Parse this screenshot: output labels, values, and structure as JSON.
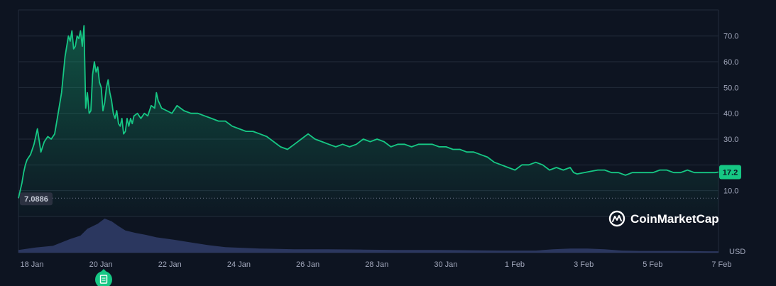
{
  "chart_data": {
    "type": "area",
    "currency_label": "USD",
    "current_price_label": "17.2",
    "low_marker_label": "7.0886",
    "brand": "CoinMarketCap",
    "colors": {
      "line": "#16c784",
      "background": "#0d1421",
      "volume": "#2f3b66",
      "badge": "#16c784",
      "low_badge": "#2b3140"
    },
    "y_ticks": [
      "10.0",
      "30.0",
      "40.0",
      "50.0",
      "60.0",
      "70.0"
    ],
    "y_tick_values": [
      10,
      30,
      40,
      50,
      60,
      70
    ],
    "ylim": [
      0,
      80
    ],
    "x_ticks": [
      "18 Jan",
      "20 Jan",
      "22 Jan",
      "24 Jan",
      "26 Jan",
      "28 Jan",
      "30 Jan",
      "1 Feb",
      "3 Feb",
      "5 Feb",
      "7 Feb"
    ],
    "x_tick_days": [
      0,
      2,
      4,
      6,
      8,
      10,
      12,
      14,
      16,
      18,
      20
    ],
    "xlim": [
      0,
      20.3
    ],
    "price_series": {
      "x": [
        0.0,
        0.05,
        0.1,
        0.15,
        0.2,
        0.25,
        0.35,
        0.45,
        0.55,
        0.65,
        0.75,
        0.85,
        0.95,
        1.05,
        1.15,
        1.25,
        1.35,
        1.45,
        1.5,
        1.55,
        1.6,
        1.65,
        1.7,
        1.75,
        1.8,
        1.85,
        1.9,
        1.95,
        2.0,
        2.05,
        2.1,
        2.15,
        2.2,
        2.25,
        2.3,
        2.35,
        2.4,
        2.45,
        2.5,
        2.55,
        2.6,
        2.65,
        2.7,
        2.75,
        2.8,
        2.85,
        2.9,
        2.95,
        3.0,
        3.05,
        3.1,
        3.15,
        3.2,
        3.25,
        3.3,
        3.35,
        3.45,
        3.55,
        3.65,
        3.75,
        3.85,
        3.95,
        4.0,
        4.05,
        4.15,
        4.3,
        4.45,
        4.6,
        4.8,
        5.0,
        5.2,
        5.4,
        5.6,
        5.8,
        6.0,
        6.2,
        6.4,
        6.6,
        6.8,
        7.0,
        7.2,
        7.4,
        7.6,
        7.8,
        8.0,
        8.2,
        8.4,
        8.6,
        8.8,
        9.0,
        9.2,
        9.4,
        9.6,
        9.8,
        10.0,
        10.2,
        10.4,
        10.6,
        10.8,
        11.0,
        11.2,
        11.4,
        11.6,
        11.8,
        12.0,
        12.2,
        12.4,
        12.6,
        12.8,
        13.0,
        13.2,
        13.4,
        13.6,
        13.8,
        14.0,
        14.2,
        14.4,
        14.6,
        14.8,
        15.0,
        15.2,
        15.4,
        15.6,
        15.8,
        16.0,
        16.1,
        16.2,
        16.4,
        16.6,
        16.8,
        17.0,
        17.2,
        17.4,
        17.6,
        17.8,
        18.0,
        18.2,
        18.4,
        18.6,
        18.8,
        19.0,
        19.2,
        19.4,
        19.6,
        19.8,
        20.0,
        20.2,
        20.3
      ],
      "y": [
        7.1,
        10,
        13,
        17,
        20,
        22,
        24,
        28,
        34,
        25,
        29,
        31,
        30,
        32,
        40,
        48,
        62,
        70,
        68,
        72,
        65,
        66,
        70,
        69,
        72,
        66,
        74,
        42,
        48,
        40,
        41,
        55,
        60,
        56,
        58,
        52,
        50,
        41,
        44,
        50,
        53,
        48,
        45,
        40,
        38,
        41,
        36,
        35,
        38,
        32,
        33,
        38,
        35,
        38,
        36,
        39,
        40,
        38,
        40,
        39,
        43,
        42,
        48,
        45,
        42,
        41,
        40,
        43,
        41,
        40,
        40,
        39,
        38,
        37,
        37,
        35,
        34,
        33,
        33,
        32,
        31,
        29,
        27,
        26,
        28,
        30,
        32,
        30,
        29,
        28,
        27,
        28,
        27,
        28,
        30,
        29,
        30,
        29,
        27,
        28,
        28,
        27,
        28,
        28,
        28,
        27,
        27,
        26,
        26,
        25,
        25,
        24,
        23,
        21,
        20,
        19,
        18,
        20,
        20,
        21,
        20,
        18,
        19,
        18,
        19,
        17,
        16.5,
        17,
        17.5,
        18,
        18,
        17,
        17,
        16,
        17,
        17,
        17,
        17,
        18,
        18,
        17,
        17,
        18,
        17,
        17,
        17,
        17,
        17.2
      ]
    },
    "volume_series": {
      "x": [
        0.0,
        0.5,
        1.0,
        1.5,
        1.8,
        2.0,
        2.3,
        2.5,
        2.7,
        2.9,
        3.1,
        3.4,
        3.7,
        4.0,
        4.5,
        5.0,
        5.5,
        6.0,
        7.0,
        8.0,
        9.0,
        10.0,
        11.0,
        12.0,
        13.0,
        14.0,
        15.0,
        15.5,
        16.0,
        16.5,
        17.0,
        17.5,
        18.0,
        19.0,
        20.0,
        20.3
      ],
      "y": [
        0.08,
        0.15,
        0.2,
        0.4,
        0.5,
        0.7,
        0.85,
        1.0,
        0.92,
        0.78,
        0.65,
        0.58,
        0.52,
        0.45,
        0.38,
        0.3,
        0.22,
        0.16,
        0.12,
        0.1,
        0.1,
        0.09,
        0.08,
        0.08,
        0.07,
        0.06,
        0.06,
        0.1,
        0.12,
        0.12,
        0.1,
        0.06,
        0.05,
        0.05,
        0.04,
        0.04
      ]
    }
  }
}
